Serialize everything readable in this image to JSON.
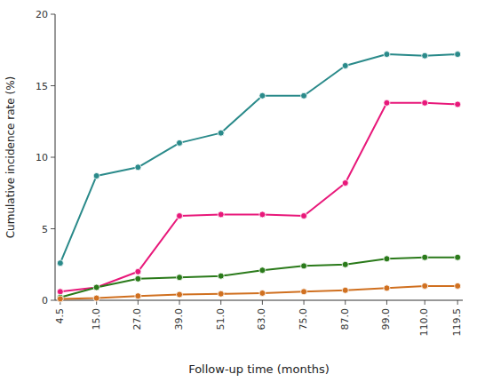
{
  "chart_data": {
    "type": "line",
    "xlabel": "Follow-up time (months)",
    "ylabel": "Cumulative incidence rate (%)",
    "x": [
      4.5,
      15.0,
      27.0,
      39.0,
      51.0,
      63.0,
      75.0,
      87.0,
      99.0,
      110.0,
      119.5
    ],
    "series": [
      {
        "color": "#2a8a8a",
        "marker": "circle",
        "values": [
          2.6,
          8.7,
          9.3,
          11.0,
          11.7,
          14.3,
          14.3,
          16.4,
          17.2,
          17.1,
          17.2
        ]
      },
      {
        "color": "#e8187a",
        "marker": "circle",
        "values": [
          0.6,
          0.9,
          2.0,
          5.9,
          6.0,
          6.0,
          5.9,
          8.2,
          13.8,
          13.8,
          13.7
        ]
      },
      {
        "color": "#2a7a1a",
        "marker": "circle",
        "values": [
          0.2,
          0.9,
          1.5,
          1.6,
          1.7,
          2.1,
          2.4,
          2.5,
          2.9,
          3.0,
          3.0
        ]
      },
      {
        "color": "#d07020",
        "marker": "circle",
        "values": [
          0.1,
          0.15,
          0.3,
          0.4,
          0.45,
          0.5,
          0.6,
          0.7,
          0.85,
          1.0,
          1.0
        ]
      }
    ],
    "xlim": [
      3,
      121
    ],
    "xticks": [
      4.5,
      {
        "value": 15.0,
        "label": "15.0"
      },
      {
        "value": 27.0,
        "label": "27.0"
      },
      {
        "value": 39.0,
        "label": "39.0"
      },
      {
        "value": 51.0,
        "label": "51.0"
      },
      {
        "value": 63.0,
        "label": "63.0"
      },
      {
        "value": 75.0,
        "label": "75.0"
      },
      {
        "value": 87.0,
        "label": "87.0"
      },
      {
        "value": 99.0,
        "label": "99.0"
      },
      {
        "value": 110.0,
        "label": "110.0"
      },
      119.5
    ],
    "ylim": [
      0,
      20
    ],
    "yticks": [
      0,
      5,
      10,
      15,
      20
    ],
    "grid": false
  }
}
